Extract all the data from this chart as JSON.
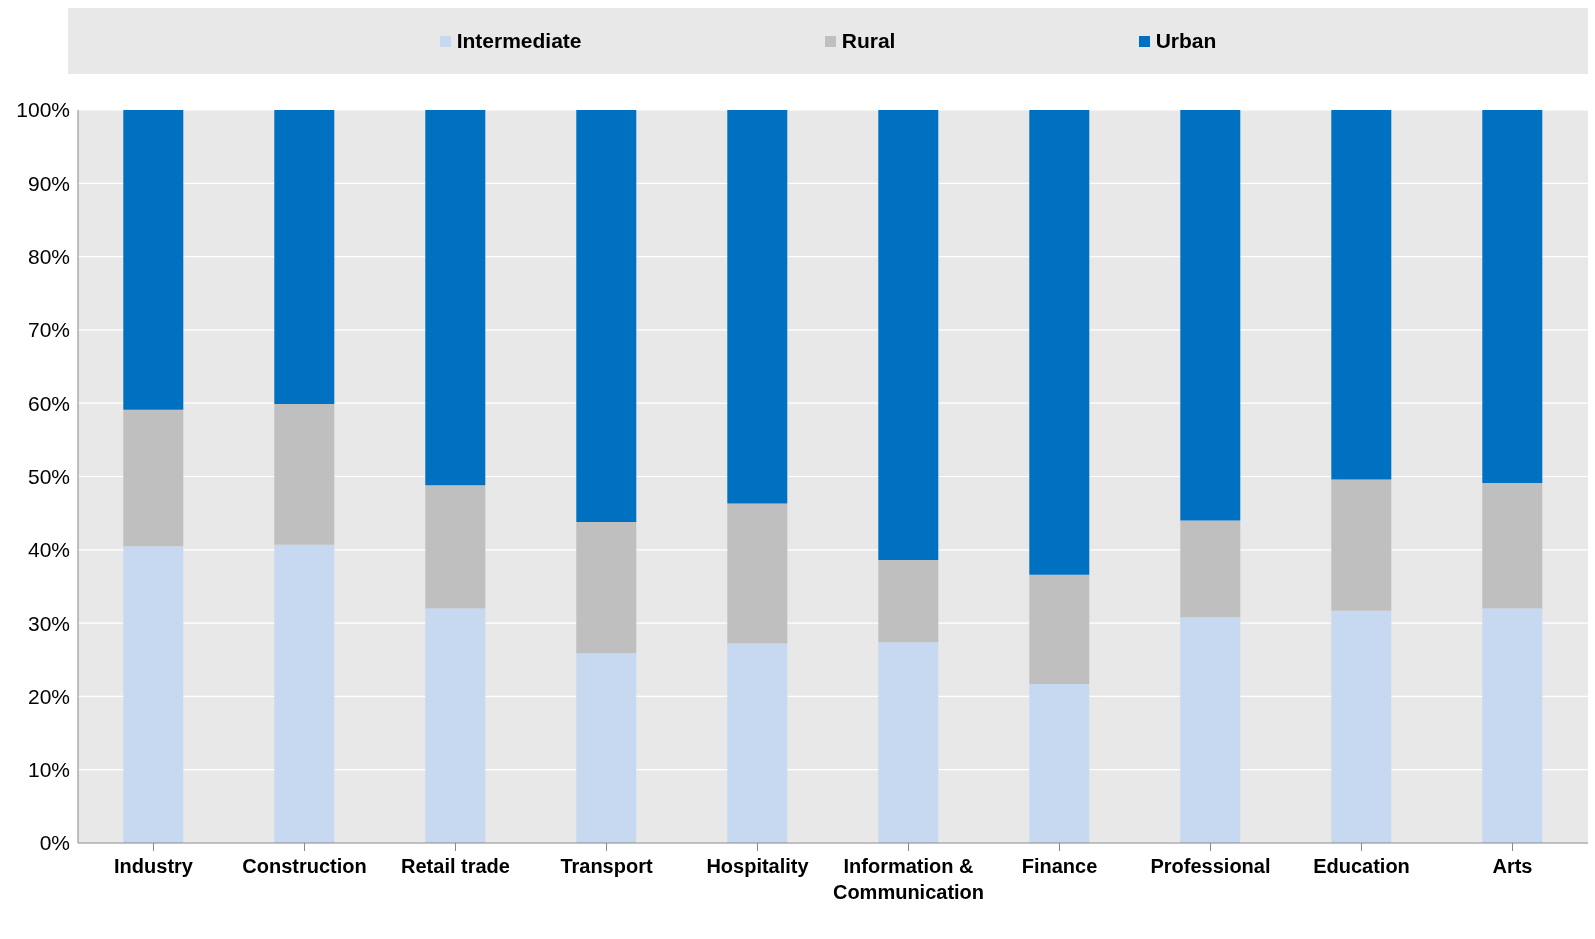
{
  "chart_data": {
    "type": "bar",
    "stacked": true,
    "categories": [
      "Industry",
      "Construction",
      "Retail trade",
      "Transport",
      "Hospitality",
      "Information & Communication",
      "Finance",
      "Professional",
      "Education",
      "Arts"
    ],
    "series": [
      {
        "name": "Intermediate",
        "color": "#c6d9f1",
        "values": [
          40.5,
          40.7,
          32.0,
          25.9,
          27.2,
          27.4,
          21.7,
          30.8,
          31.7,
          32.0
        ]
      },
      {
        "name": "Rural",
        "color": "#bfbfbf",
        "values": [
          18.6,
          19.2,
          16.8,
          17.9,
          19.1,
          11.2,
          14.9,
          13.2,
          17.9,
          17.1
        ]
      },
      {
        "name": "Urban",
        "color": "#0070c0",
        "values": [
          40.9,
          40.1,
          51.2,
          56.2,
          53.7,
          61.4,
          63.4,
          56.0,
          50.4,
          50.9
        ]
      }
    ],
    "ylim": [
      0,
      100
    ],
    "yticks": [
      {
        "value": 0,
        "label": "0%"
      },
      {
        "value": 10,
        "label": "10%"
      },
      {
        "value": 20,
        "label": "20%"
      },
      {
        "value": 30,
        "label": "30%"
      },
      {
        "value": 40,
        "label": "40%"
      },
      {
        "value": 50,
        "label": "50%"
      },
      {
        "value": 60,
        "label": "60%"
      },
      {
        "value": 70,
        "label": "70%"
      },
      {
        "value": 80,
        "label": "80%"
      },
      {
        "value": 90,
        "label": "90%"
      },
      {
        "value": 100,
        "label": "100%"
      }
    ],
    "grid": "y",
    "legend": "top"
  }
}
